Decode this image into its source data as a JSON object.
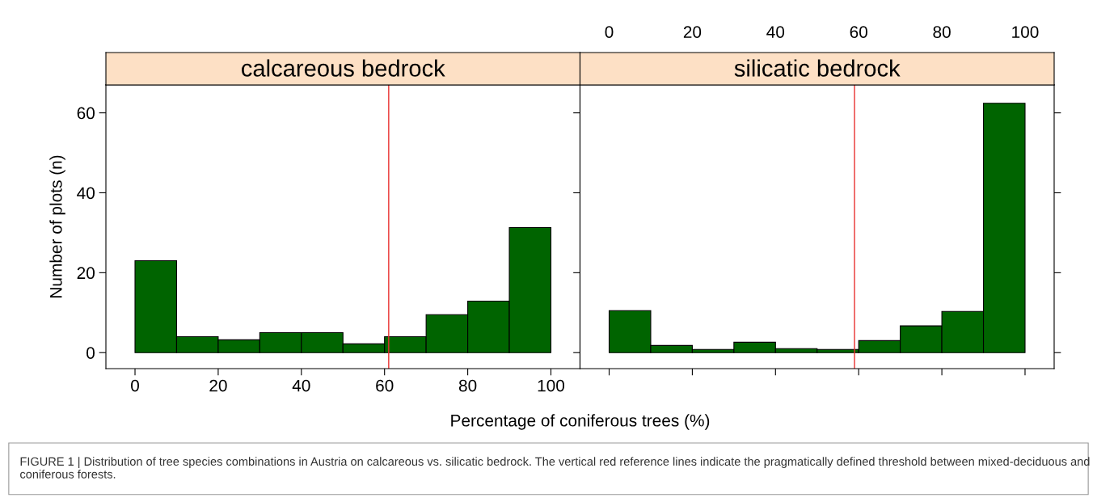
{
  "chart_data": [
    {
      "type": "histogram",
      "title": "calcareous bedrock",
      "xlabel": "Percentage of coniferous trees (%)",
      "ylabel": "Number of plots (n)",
      "bins": [
        0,
        10,
        20,
        30,
        40,
        50,
        60,
        70,
        80,
        90,
        100
      ],
      "values": [
        23.0,
        4.0,
        3.2,
        5.0,
        5.0,
        2.2,
        4.0,
        9.5,
        12.9,
        31.3
      ],
      "color": "#006400",
      "xlim": [
        -7,
        107
      ],
      "xticks": [
        0,
        20,
        40,
        60,
        80,
        100
      ],
      "ylim": [
        -4,
        67
      ],
      "yticks": [
        0,
        20,
        40,
        60
      ],
      "grid": false,
      "ref_lines": [
        {
          "axis": "x",
          "value": 61,
          "color": "#e8312f"
        }
      ],
      "annotations": [
        "FIGURE 1 | Distribution of tree species combinations in Austria on calcareous vs. silicatic bedrock. The vertical red reference lines indicate the pragmatically defined threshold between mixed-deciduous and coniferous forests."
      ]
    },
    {
      "type": "histogram",
      "title": "silicatic bedrock",
      "bins": [
        0,
        10,
        20,
        30,
        40,
        50,
        60,
        70,
        80,
        90,
        100
      ],
      "values": [
        10.5,
        1.8,
        0.8,
        2.6,
        1.0,
        0.8,
        3.0,
        6.7,
        10.3,
        62.4
      ],
      "color": "#006400",
      "xlim": [
        -7,
        107
      ],
      "xticks": [
        0,
        20,
        40,
        60,
        80,
        100
      ],
      "ylim": [
        -4,
        67
      ],
      "yticks": [
        0,
        20,
        40,
        60
      ],
      "grid": false,
      "tick_labels": "x",
      "ref_lines": [
        {
          "axis": "x",
          "value": 59,
          "color": "#e8312f"
        }
      ]
    }
  ]
}
